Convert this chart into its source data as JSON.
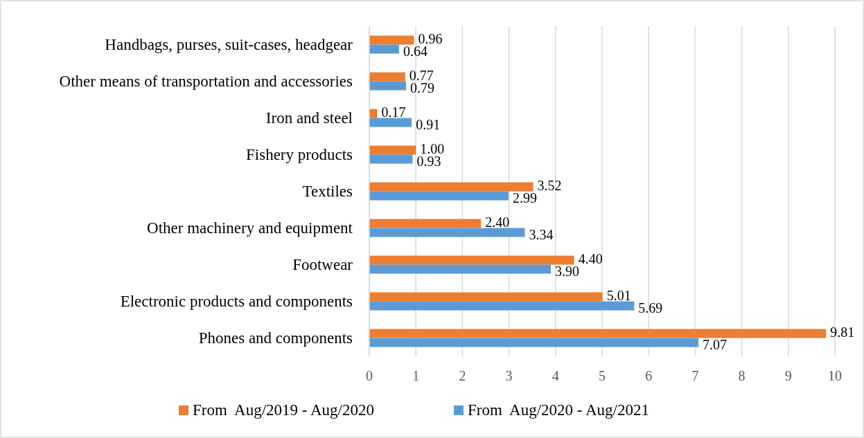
{
  "chart_data": {
    "type": "bar",
    "orientation": "horizontal",
    "categories": [
      "Handbags, purses, suit-cases, headgear",
      "Other means of transportation and accessories",
      "Iron and steel",
      "Fishery products",
      "Textiles",
      "Other machinery and equipment",
      "Footwear",
      "Electronic products and components",
      "Phones and components"
    ],
    "series": [
      {
        "name": "From  Aug/2019 - Aug/2020",
        "color": "#ed7d31",
        "values": [
          0.96,
          0.77,
          0.17,
          1.0,
          3.52,
          2.4,
          4.4,
          5.01,
          9.81
        ],
        "value_labels": [
          "0.96",
          "0.77",
          "0.17",
          "1.00",
          "3.52",
          "2.40",
          "4.40",
          "5.01",
          "9.81"
        ]
      },
      {
        "name": "From  Aug/2020 - Aug/2021",
        "color": "#5b9bd5",
        "values": [
          0.64,
          0.79,
          0.91,
          0.93,
          2.99,
          3.34,
          3.9,
          5.69,
          7.07
        ],
        "value_labels": [
          "0.64",
          "0.79",
          "0.91",
          "0.93",
          "2.99",
          "3.34",
          "3.90",
          "5.69",
          "7.07"
        ]
      }
    ],
    "xlim": [
      0,
      10
    ],
    "xticks": [
      0,
      1,
      2,
      3,
      4,
      5,
      6,
      7,
      8,
      9,
      10
    ],
    "grid": "x",
    "legend": "bottom"
  }
}
